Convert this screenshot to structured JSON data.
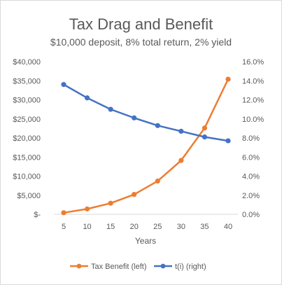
{
  "chart_data": {
    "type": "line",
    "title": "Tax Drag and Benefit",
    "subtitle": "$10,000 deposit, 8% total return, 2% yield",
    "xlabel": "Years",
    "x": [
      5,
      10,
      15,
      20,
      25,
      30,
      35,
      40
    ],
    "y_left_ticks": [
      "$-",
      "$5,000",
      "$10,000",
      "$15,000",
      "$20,000",
      "$25,000",
      "$30,000",
      "$35,000",
      "$40,000"
    ],
    "y_right_ticks": [
      "0.0%",
      "2.0%",
      "4.0%",
      "6.0%",
      "8.0%",
      "10.0%",
      "12.0%",
      "14.0%",
      "16.0%"
    ],
    "ylim_left": [
      0,
      40000
    ],
    "ylim_right": [
      0,
      16
    ],
    "grid": false,
    "legend_position": "bottom",
    "series": [
      {
        "name": "Tax Benefit (left)",
        "axis": "left",
        "color": "#ED7D31",
        "values": [
          400,
          1400,
          2900,
          5200,
          8700,
          14100,
          22600,
          35400
        ]
      },
      {
        "name": "t(i) (right)",
        "axis": "right",
        "color": "#4472C4",
        "values": [
          13.6,
          12.2,
          11.0,
          10.1,
          9.3,
          8.7,
          8.1,
          7.7
        ]
      }
    ]
  }
}
